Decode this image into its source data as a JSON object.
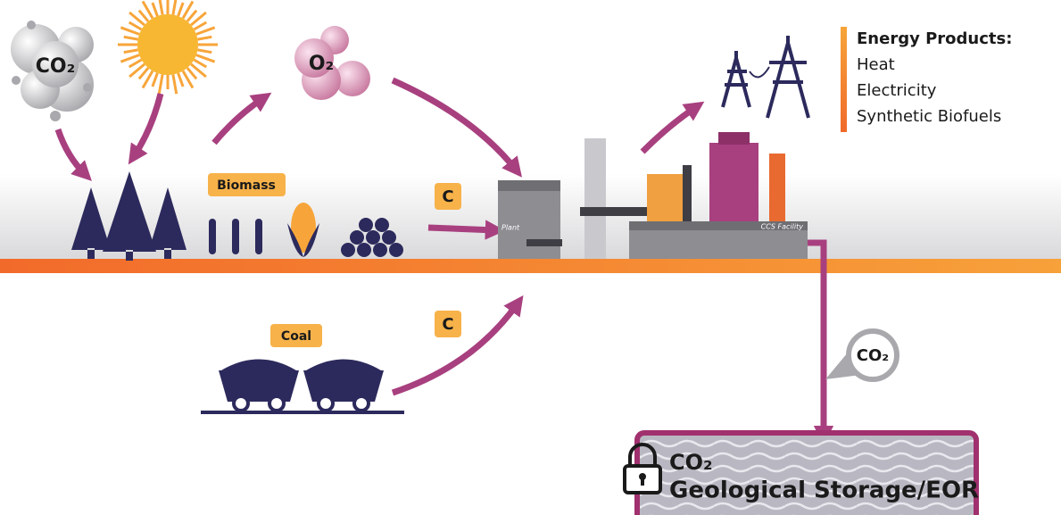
{
  "labels": {
    "atmosphere_co2": "CO₂",
    "oxygen": "O₂",
    "biomass": "Biomass",
    "carbon_biomass": "C",
    "carbon_coal": "C",
    "coal": "Coal",
    "plant": "Plant",
    "ccs_facility": "CCS Facility",
    "pipe_co2": "CO₂"
  },
  "energy_products": {
    "title": "Energy Products:",
    "items": [
      "Heat",
      "Electricity",
      "Synthetic Biofuels"
    ]
  },
  "storage": {
    "line1": "CO₂",
    "line2": "Geological Storage/EOR"
  }
}
